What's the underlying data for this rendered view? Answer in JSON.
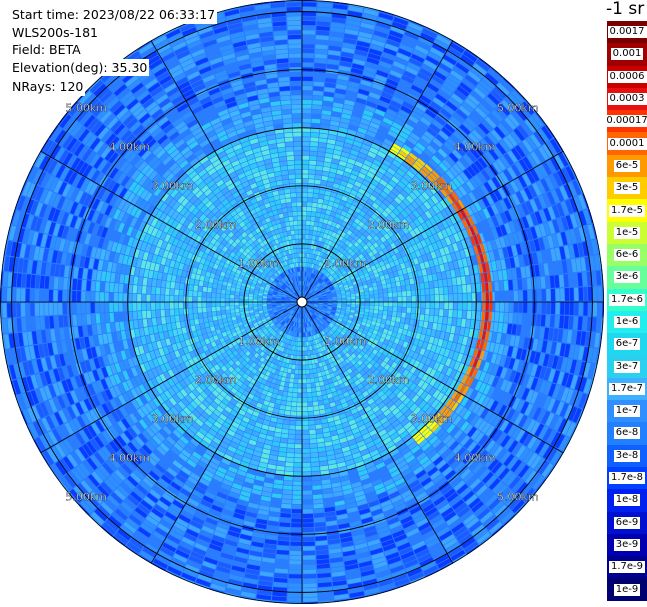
{
  "header": {
    "start_time": "Start time: 2023/08/22 06:33:17",
    "instrument": "WLS200s-181",
    "field": "Field: BETA",
    "elevation": "Elevation(deg): 35.30",
    "nrays": "NRays: 120"
  },
  "colorbar": {
    "units": "-1 sr",
    "labels": [
      "0.0017",
      "0.001",
      "0.0006",
      "0.0003",
      "0.00017",
      "0.0001",
      "6e-5",
      "3e-5",
      "1.7e-5",
      "1e-5",
      "6e-6",
      "3e-6",
      "1.7e-6",
      "1e-6",
      "6e-7",
      "3e-7",
      "1.7e-7",
      "1e-7",
      "6e-8",
      "3e-8",
      "1.7e-8",
      "1e-8",
      "6e-9",
      "3e-9",
      "1.7e-9",
      "1e-9"
    ],
    "colors": [
      "#7a0000",
      "#a00000",
      "#c80000",
      "#e61010",
      "#ff3300",
      "#ff6600",
      "#ff9900",
      "#ffcc00",
      "#ffff00",
      "#ccff33",
      "#99ff66",
      "#66ff99",
      "#33ffcc",
      "#22eeee",
      "#1fd8f0",
      "#2ad0f0",
      "#3fb0ff",
      "#2f8fff",
      "#2080ff",
      "#1060ff",
      "#0040ff",
      "#0020f0",
      "#0010d0",
      "#0000b0",
      "#000090",
      "#000070"
    ]
  },
  "chart_data": {
    "type": "heatmap",
    "subtype": "polar PPI scan",
    "field": "BETA",
    "elevation_deg": 35.3,
    "nrays": 120,
    "range_rings_km": [
      1.0,
      2.0,
      3.0,
      4.0,
      5.0
    ],
    "range_ring_labels": [
      "1.00km",
      "2.00km",
      "3.00km",
      "4.00km",
      "5.00km"
    ],
    "radial_spokes_every_deg": 30,
    "max_range_km": 5.2,
    "background_level": "1e-7 to 1e-8",
    "feature": {
      "description_values": "high backscatter arc near 3 km range",
      "peak_value": "0.0003",
      "range_km": 3.05,
      "azimuth_start_deg": 30,
      "azimuth_end_deg": 140
    }
  }
}
